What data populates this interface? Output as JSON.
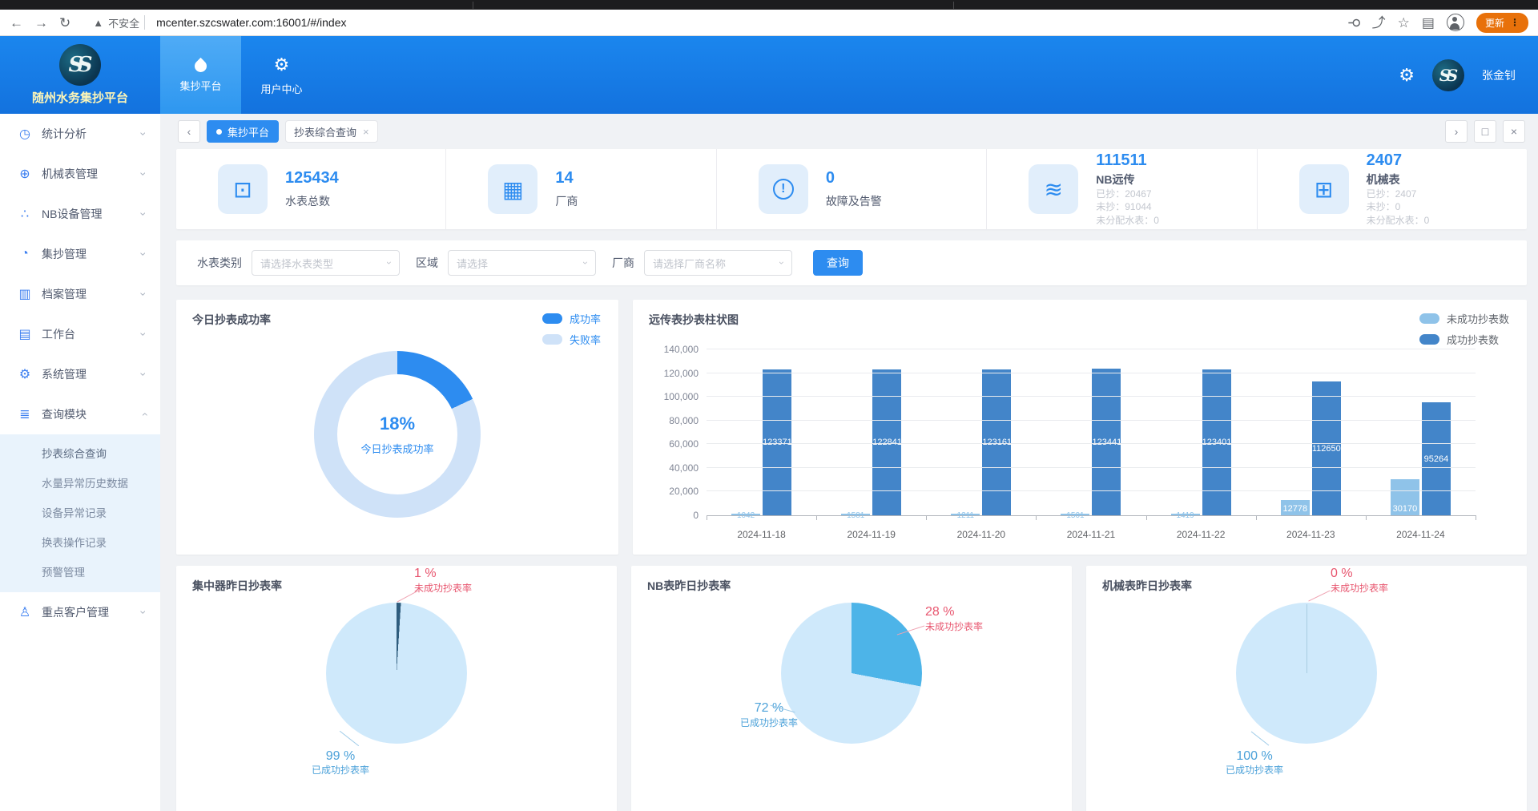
{
  "browser": {
    "security_label": "不安全",
    "url": "mcenter.szcswater.com:16001/#/index",
    "update_label": "更新"
  },
  "header": {
    "app_title": "随州水务集抄平台",
    "nav": [
      {
        "label": "集抄平台",
        "icon": "water-drop-icon",
        "active": true
      },
      {
        "label": "用户中心",
        "icon": "gear-icon",
        "active": false
      }
    ],
    "username": "张金钊"
  },
  "sidebar": {
    "items": [
      {
        "label": "统计分析",
        "icon": "stats-icon"
      },
      {
        "label": "机械表管理",
        "icon": "mechanical-meter-icon"
      },
      {
        "label": "NB设备管理",
        "icon": "nb-device-icon"
      },
      {
        "label": "集抄管理",
        "icon": "meter-reading-icon"
      },
      {
        "label": "档案管理",
        "icon": "archive-icon"
      },
      {
        "label": "工作台",
        "icon": "workbench-icon"
      },
      {
        "label": "系统管理",
        "icon": "system-icon"
      },
      {
        "label": "查询模块",
        "icon": "query-icon",
        "expanded": true,
        "submenu": [
          {
            "label": "抄表综合查询",
            "active": true
          },
          {
            "label": "水量异常历史数据",
            "active": false
          },
          {
            "label": "设备异常记录",
            "active": false
          },
          {
            "label": "换表操作记录",
            "active": false
          },
          {
            "label": "预警管理",
            "active": false
          }
        ]
      },
      {
        "label": "重点客户管理",
        "icon": "vip-customer-icon"
      }
    ]
  },
  "tabbar": {
    "active_crumb": "集抄平台",
    "open_tab": "抄表综合查询"
  },
  "stats": {
    "cards": [
      {
        "value": "125434",
        "label": "水表总数",
        "icon": "water-meter-icon",
        "details": []
      },
      {
        "value": "14",
        "label": "厂商",
        "icon": "vendor-icon",
        "details": []
      },
      {
        "value": "0",
        "label": "故障及告警",
        "icon": "alert-circle-icon",
        "details": []
      },
      {
        "value": "111511",
        "label": "NB远传",
        "icon": "nb-remote-icon",
        "details": [
          "已抄：20467",
          "未抄：91044",
          "未分配水表：0"
        ]
      },
      {
        "value": "2407",
        "label": "机械表",
        "icon": "mechanical-meter-icon",
        "details": [
          "已抄：2407",
          "未抄：0",
          "未分配水表：0"
        ]
      }
    ]
  },
  "filters": {
    "fields": [
      {
        "label": "水表类别",
        "placeholder": "请选择水表类型"
      },
      {
        "label": "区域",
        "placeholder": "请选择"
      },
      {
        "label": "厂商",
        "placeholder": "请选择厂商名称"
      }
    ],
    "search_label": "查询"
  },
  "colors": {
    "primary": "#2d8cf0",
    "donut_success": "#2d8cf0",
    "donut_fail": "#cfe2f8",
    "bar_success": "#4385c9",
    "bar_fail": "#8fc3e9",
    "pie_light": "#cfe9fb",
    "pie_nb_slice": "#4db4e8",
    "pie_dark_slice": "#2f5d7e",
    "fail_label_red": "#e8566f",
    "success_label_blue": "#4ba1d9"
  },
  "chart_data": [
    {
      "type": "pie",
      "variant": "donut",
      "title": "今日抄表成功率",
      "center_value": "18%",
      "center_label": "今日抄表成功率",
      "legend": [
        {
          "name": "成功率",
          "color": "#2d8cf0"
        },
        {
          "name": "失败率",
          "color": "#cfe2f8"
        }
      ],
      "slices": [
        {
          "name": "成功率",
          "value": 18
        },
        {
          "name": "失败率",
          "value": 82
        }
      ]
    },
    {
      "type": "bar",
      "title": "远传表抄表柱状图",
      "categories": [
        "2024-11-18",
        "2024-11-19",
        "2024-11-20",
        "2024-11-21",
        "2024-11-22",
        "2024-11-23",
        "2024-11-24"
      ],
      "series": [
        {
          "name": "未成功抄表数",
          "color": "#8fc3e9",
          "values": [
            1042,
            1581,
            1211,
            1501,
            1419,
            12778,
            30170
          ]
        },
        {
          "name": "成功抄表数",
          "color": "#4385c9",
          "values": [
            123371,
            122841,
            123161,
            123441,
            123401,
            112650,
            95264
          ]
        }
      ],
      "ylim": [
        0,
        140000
      ],
      "ytick_labels": [
        "0",
        "20,000",
        "40,000",
        "60,000",
        "80,000",
        "100,000",
        "120,000",
        "140,000"
      ],
      "legend_position": "top-right",
      "grid": true
    },
    {
      "type": "pie",
      "title": "集中器昨日抄表率",
      "slices": [
        {
          "name": "未成功抄表率",
          "pct_label": "1 %",
          "value": 1,
          "color": "#2f5d7e"
        },
        {
          "name": "已成功抄表率",
          "pct_label": "99 %",
          "value": 99,
          "color": "#cfe9fb"
        }
      ]
    },
    {
      "type": "pie",
      "title": "NB表昨日抄表率",
      "slices": [
        {
          "name": "未成功抄表率",
          "pct_label": "28 %",
          "value": 28,
          "color": "#4db4e8"
        },
        {
          "name": "已成功抄表率",
          "pct_label": "72 %",
          "value": 72,
          "color": "#cfe9fb"
        }
      ]
    },
    {
      "type": "pie",
      "title": "机械表昨日抄表率",
      "slices": [
        {
          "name": "未成功抄表率",
          "pct_label": "0 %",
          "value": 0,
          "color": "#4db4e8"
        },
        {
          "name": "已成功抄表率",
          "pct_label": "100 %",
          "value": 100,
          "color": "#cfe9fb"
        }
      ]
    }
  ]
}
